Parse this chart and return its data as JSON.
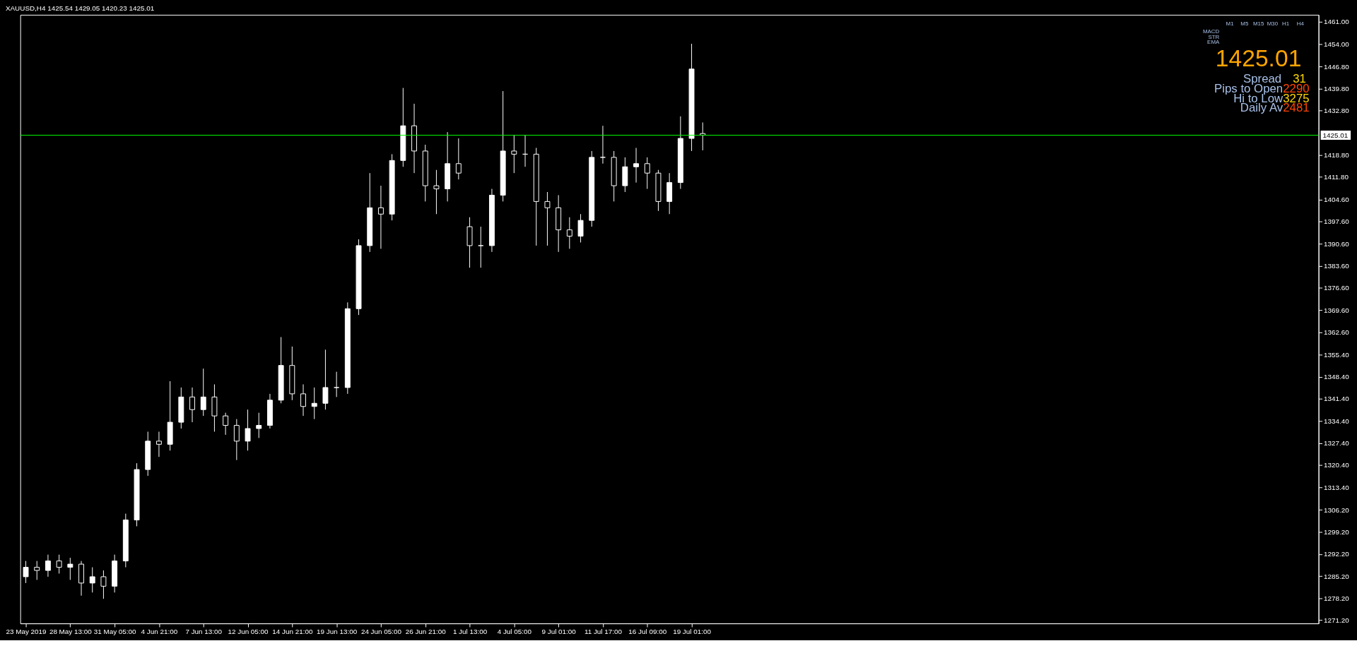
{
  "chart_data": {
    "type": "candlestick",
    "title": "XAUUSD,H4  1425.54 1429.05 1420.23 1425.01",
    "color": "#ffffff",
    "categories": [
      "23 May 2019",
      null,
      null,
      null,
      "28 May 13:00",
      null,
      null,
      null,
      "31 May 05:00",
      null,
      null,
      null,
      "4 Jun 21:00",
      null,
      null,
      null,
      "7 Jun 13:00",
      null,
      null,
      null,
      "12 Jun 05:00",
      null,
      null,
      null,
      "14 Jun 21:00",
      null,
      null,
      null,
      "19 Jun 13:00",
      null,
      null,
      null,
      "24 Jun 05:00",
      null,
      null,
      null,
      "26 Jun 21:00",
      null,
      null,
      null,
      "1 Jul 13:00",
      null,
      null,
      null,
      "4 Jul 05:00",
      null,
      null,
      null,
      "9 Jul 01:00",
      null,
      null,
      null,
      "11 Jul 17:00",
      null,
      null,
      null,
      "16 Jul 09:00",
      null,
      null,
      null,
      "19 Jul 01:00",
      null,
      null,
      null,
      null,
      null,
      null,
      null,
      null,
      null,
      null,
      null,
      null,
      null,
      null,
      null,
      null,
      null,
      null,
      null,
      null,
      null,
      null,
      null,
      null,
      null,
      null,
      null,
      null,
      null,
      null,
      null,
      null,
      null,
      null,
      null,
      null,
      null,
      null,
      null,
      null,
      null,
      null,
      null,
      null,
      null,
      null,
      null,
      null,
      null,
      null,
      null,
      null,
      null,
      null,
      null,
      null
    ],
    "ohlc": [
      [
        1285,
        1290,
        1283,
        1288
      ],
      [
        1288,
        1290,
        1284,
        1287
      ],
      [
        1287,
        1292,
        1285,
        1290
      ],
      [
        1290,
        1292,
        1286,
        1288
      ],
      [
        1288,
        1291,
        1284,
        1289
      ],
      [
        1289,
        1290,
        1279,
        1283
      ],
      [
        1283,
        1288,
        1280,
        1285
      ],
      [
        1285,
        1287,
        1278,
        1282
      ],
      [
        1282,
        1292,
        1280,
        1290
      ],
      [
        1290,
        1305,
        1288,
        1303
      ],
      [
        1303,
        1321,
        1301,
        1319
      ],
      [
        1319,
        1331,
        1317,
        1328
      ],
      [
        1328,
        1331,
        1323,
        1327
      ],
      [
        1327,
        1347,
        1325,
        1334
      ],
      [
        1334,
        1345,
        1332,
        1342
      ],
      [
        1342,
        1345,
        1334,
        1338
      ],
      [
        1338,
        1351,
        1336,
        1342
      ],
      [
        1342,
        1346,
        1331,
        1336
      ],
      [
        1336,
        1337,
        1330,
        1333
      ],
      [
        1333,
        1335,
        1322,
        1328
      ],
      [
        1328,
        1338,
        1325,
        1332
      ],
      [
        1332,
        1337,
        1329,
        1333
      ],
      [
        1333,
        1343,
        1332,
        1341
      ],
      [
        1341,
        1361,
        1340,
        1352
      ],
      [
        1352,
        1358,
        1341,
        1343
      ],
      [
        1343,
        1346,
        1336,
        1339
      ],
      [
        1339,
        1345,
        1335,
        1340
      ],
      [
        1340,
        1357,
        1338,
        1345
      ],
      [
        1345,
        1350,
        1342,
        1345
      ],
      [
        1345,
        1372,
        1343,
        1370
      ],
      [
        1370,
        1392,
        1368,
        1390
      ],
      [
        1390,
        1413,
        1388,
        1402
      ],
      [
        1402,
        1409,
        1389,
        1400
      ],
      [
        1400,
        1419,
        1398,
        1417
      ],
      [
        1417,
        1440,
        1415,
        1428
      ],
      [
        1428,
        1435,
        1413,
        1420
      ],
      [
        1420,
        1422,
        1404,
        1409
      ],
      [
        1409,
        1414,
        1400,
        1408
      ],
      [
        1408,
        1426,
        1404,
        1416
      ],
      [
        1416,
        1424,
        1411,
        1413
      ],
      [
        1396,
        1399,
        1383,
        1390
      ],
      [
        1390,
        1396,
        1383,
        1390
      ],
      [
        1390,
        1408,
        1388,
        1406
      ],
      [
        1406,
        1439,
        1404,
        1420
      ],
      [
        1420,
        1425,
        1413,
        1419
      ],
      [
        1419,
        1425,
        1415,
        1419
      ],
      [
        1419,
        1421,
        1390,
        1404
      ],
      [
        1404,
        1407,
        1390,
        1402
      ],
      [
        1402,
        1406,
        1388,
        1395
      ],
      [
        1395,
        1399,
        1389,
        1393
      ],
      [
        1393,
        1400,
        1391,
        1398
      ],
      [
        1398,
        1420,
        1396,
        1418
      ],
      [
        1418,
        1428,
        1416,
        1418
      ],
      [
        1418,
        1420,
        1404,
        1409
      ],
      [
        1409,
        1418,
        1407,
        1415
      ],
      [
        1415,
        1421,
        1410,
        1416
      ],
      [
        1416,
        1418,
        1408,
        1413
      ],
      [
        1413,
        1414,
        1401,
        1404
      ],
      [
        1404,
        1413,
        1400,
        1410
      ],
      [
        1410,
        1431,
        1408,
        1424
      ],
      [
        1424,
        1454,
        1420,
        1446
      ],
      [
        1425.54,
        1429.05,
        1420.23,
        1425.01
      ],
      null,
      null,
      null,
      null,
      null,
      null,
      null,
      null,
      null,
      null,
      null,
      null,
      null,
      null,
      null,
      null,
      null,
      null,
      null,
      null,
      null,
      null,
      null,
      null,
      null,
      null,
      null,
      null,
      null,
      null,
      null,
      null,
      null,
      null,
      null,
      null,
      null,
      null,
      null,
      null,
      null,
      null,
      null,
      null,
      null,
      null,
      null,
      null,
      null,
      null,
      null,
      null,
      null,
      null,
      null
    ],
    "ylim": [
      1270.2,
      1463.2
    ],
    "yticks": [
      {
        "value": 1461,
        "label": "1461.00"
      },
      {
        "value": 1454,
        "label": "1454.00"
      },
      {
        "value": 1446.8,
        "label": "1446.80"
      },
      {
        "value": 1439.8,
        "label": "1439.80"
      },
      {
        "value": 1432.8,
        "label": "1432.80"
      },
      {
        "value": 1418.8,
        "label": "1418.80"
      },
      {
        "value": 1411.8,
        "label": "1411.80"
      },
      {
        "value": 1404.6,
        "label": "1404.60"
      },
      {
        "value": 1397.6,
        "label": "1397.60"
      },
      {
        "value": 1390.6,
        "label": "1390.60"
      },
      {
        "value": 1383.6,
        "label": "1383.60"
      },
      {
        "value": 1376.6,
        "label": "1376.60"
      },
      {
        "value": 1369.6,
        "label": "1369.60"
      },
      {
        "value": 1362.6,
        "label": "1362.60"
      },
      {
        "value": 1355.4,
        "label": "1355.40"
      },
      {
        "value": 1348.4,
        "label": "1348.40"
      },
      {
        "value": 1341.4,
        "label": "1341.40"
      },
      {
        "value": 1334.4,
        "label": "1334.40"
      },
      {
        "value": 1327.4,
        "label": "1327.40"
      },
      {
        "value": 1320.4,
        "label": "1320.40"
      },
      {
        "value": 1313.4,
        "label": "1313.40"
      },
      {
        "value": 1306.2,
        "label": "1306.20"
      },
      {
        "value": 1299.2,
        "label": "1299.20"
      },
      {
        "value": 1292.2,
        "label": "1292.20"
      },
      {
        "value": 1285.2,
        "label": "1285.20"
      },
      {
        "value": 1278.2,
        "label": "1278.20"
      },
      {
        "value": 1271.2,
        "label": "1271.20"
      }
    ],
    "ref_lines": [
      {
        "axis": "y",
        "value": 1425.01,
        "label": "1425.01",
        "color": "#00ff00"
      }
    ],
    "grid": false,
    "annotations": [
      "1425.01",
      "Spread",
      "31",
      "Pips to Open",
      "2290",
      "Hi to Low",
      "3275",
      "Daily Av",
      "2481",
      "M1",
      "M5",
      "M15",
      "M30",
      "H1",
      "H4",
      "MACD",
      "STR",
      "EMA"
    ]
  }
}
